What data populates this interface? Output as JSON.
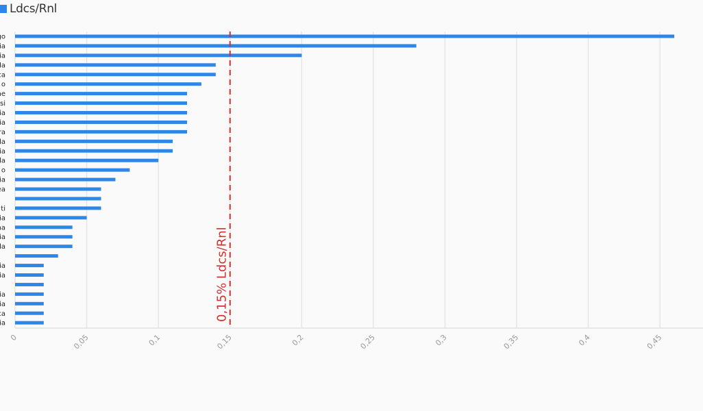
{
  "chart_data": {
    "type": "bar",
    "orientation": "horizontal",
    "legend": {
      "position": "top-left",
      "entries": [
        "Ldcs/Rnl"
      ]
    },
    "series": [
      {
        "name": "Ldcs/Rnl",
        "color": "#2e86e6",
        "values": [
          0.46,
          0.28,
          0.2,
          0.14,
          0.14,
          0.13,
          0.12,
          0.12,
          0.12,
          0.12,
          0.12,
          0.11,
          0.11,
          0.1,
          0.08,
          0.07,
          0.06,
          0.06,
          0.06,
          0.05,
          0.04,
          0.04,
          0.04,
          0.03,
          0.02,
          0.02,
          0.02,
          0.02,
          0.02,
          0.02,
          0.02
        ]
      }
    ],
    "categories": [
      "go",
      "ia",
      "ia",
      "da",
      "ca",
      "o",
      "ne",
      "si",
      "ia",
      "ia",
      "ra",
      "da",
      "ia",
      "da",
      "o",
      "ia",
      "ea",
      "",
      "ti",
      "ia",
      "na",
      "ia",
      "da",
      "",
      "ia",
      "ia",
      "",
      "ia",
      "ia",
      "ca",
      "ia"
    ],
    "x_axis": {
      "min": 0,
      "max": 0.47,
      "ticks": [
        "0",
        "0,05",
        "0,1",
        "0,15",
        "0,2",
        "0,25",
        "0,3",
        "0,35",
        "0,4",
        "0,45"
      ],
      "tick_values": [
        0,
        0.05,
        0.1,
        0.15,
        0.2,
        0.25,
        0.3,
        0.35,
        0.4,
        0.45
      ]
    },
    "grid": true,
    "reference_line": {
      "value": 0.15,
      "label": "0,15% Ldcs/Rnl",
      "color": "#d32f2f",
      "style": "dashed"
    }
  }
}
